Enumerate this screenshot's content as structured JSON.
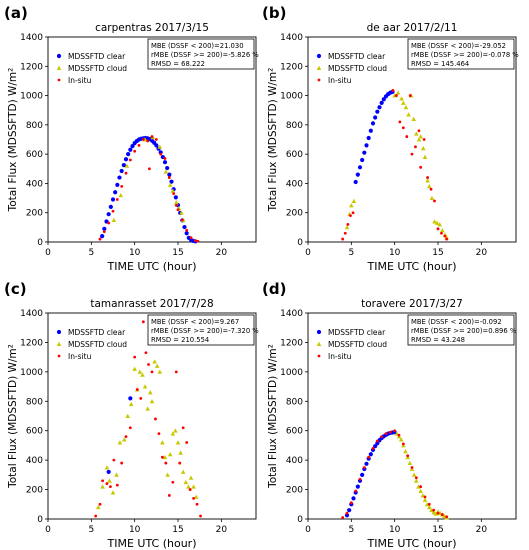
{
  "figure": {
    "panels_order": [
      "a",
      "b",
      "c",
      "d"
    ]
  },
  "chart_data": [
    {
      "panel_label": "(a)",
      "type": "scatter",
      "title": "carpentras  2017/3/15",
      "xlabel": "TIME UTC (hour)",
      "ylabel": "Total Flux (MDSSFTD) W/m²",
      "xlim": [
        0,
        24
      ],
      "ylim": [
        0,
        1400
      ],
      "xticks": [
        0,
        5,
        10,
        15,
        20
      ],
      "yticks": [
        0,
        200,
        400,
        600,
        800,
        1000,
        1200,
        1400
      ],
      "grid": false,
      "legend": "top-left",
      "stats": [
        "MBE (DSSF < 200)=21.030",
        "rMBE (DSSF >= 200)=-5.826 %",
        "RMSD = 68.222"
      ],
      "series": [
        {
          "name": "MDSSFTD clear",
          "color": "#0000ff",
          "x": [
            6.25,
            6.5,
            6.75,
            7,
            7.25,
            7.5,
            7.75,
            8,
            8.25,
            8.5,
            8.75,
            9,
            9.25,
            9.5,
            9.75,
            10,
            10.25,
            10.5,
            10.75,
            11,
            11.25,
            11.5,
            11.75,
            12,
            12.25,
            12.5,
            12.75,
            13,
            13.25,
            13.5,
            13.75,
            14,
            14.25,
            14.5,
            14.75,
            15,
            15.25,
            15.5,
            15.75,
            16,
            16.25,
            16.5,
            16.75,
            17
          ],
          "y": [
            40,
            90,
            140,
            190,
            240,
            290,
            340,
            390,
            440,
            485,
            525,
            565,
            600,
            630,
            655,
            675,
            690,
            700,
            705,
            708,
            710,
            708,
            702,
            692,
            678,
            660,
            638,
            612,
            580,
            545,
            505,
            460,
            412,
            360,
            305,
            252,
            198,
            148,
            102,
            60,
            28,
            15,
            8,
            4
          ]
        },
        {
          "name": "MDSSFTD cloud",
          "color": "#c8c800",
          "x": [
            7.6,
            8.4,
            9.1,
            11.2,
            12.1,
            12.9,
            13.6,
            14.1,
            14.4,
            14.8,
            15.1,
            15.4,
            15.6
          ],
          "y": [
            150,
            320,
            520,
            700,
            715,
            650,
            480,
            390,
            350,
            270,
            230,
            200,
            150
          ],
          "marker": "triangle"
        },
        {
          "name": "In-situ",
          "color": "#ff0000",
          "x": [
            6,
            6.5,
            7,
            7.5,
            8,
            8.5,
            9,
            9.5,
            10,
            10.5,
            11,
            11.5,
            11.7,
            12,
            12.5,
            13,
            13.5,
            14,
            14.5,
            14.8,
            15,
            15.5,
            16,
            16.5,
            17,
            17.3
          ],
          "y": [
            20,
            70,
            130,
            210,
            290,
            380,
            470,
            560,
            620,
            660,
            700,
            690,
            500,
            720,
            700,
            600,
            570,
            440,
            330,
            250,
            220,
            150,
            80,
            30,
            10,
            5
          ]
        }
      ]
    },
    {
      "panel_label": "(b)",
      "type": "scatter",
      "title": "de aar  2017/2/11",
      "xlabel": "TIME UTC (hour)",
      "ylabel": "Total Flux (MDSSFTD) W/m²",
      "xlim": [
        0,
        24
      ],
      "ylim": [
        0,
        1400
      ],
      "xticks": [
        0,
        5,
        10,
        15,
        20
      ],
      "yticks": [
        0,
        200,
        400,
        600,
        800,
        1000,
        1200,
        1400
      ],
      "grid": false,
      "legend": "top-left",
      "stats": [
        "MBE (DSSF < 200)=-29.052",
        "rMBE (DSSF >= 200)=-0.078 %",
        "RMSD = 145.464"
      ],
      "series": [
        {
          "name": "MDSSFTD clear",
          "color": "#0000ff",
          "x": [
            5.5,
            5.75,
            6,
            6.25,
            6.5,
            6.75,
            7,
            7.25,
            7.5,
            7.75,
            8,
            8.25,
            8.5,
            8.75,
            9,
            9.25,
            9.5,
            9.75
          ],
          "y": [
            410,
            460,
            510,
            560,
            610,
            660,
            710,
            760,
            810,
            850,
            890,
            920,
            950,
            975,
            995,
            1010,
            1020,
            1025
          ]
        },
        {
          "name": "MDSSFTD cloud",
          "color": "#c8c800",
          "x": [
            4.5,
            4.8,
            5,
            5.3,
            10,
            10.4,
            10.8,
            11,
            11.3,
            11.6,
            11.9,
            12.2,
            12.5,
            12.8,
            13,
            13.3,
            13.5,
            13.8,
            14,
            14.3,
            14.6,
            14.9,
            15.2,
            15.5,
            15.8,
            16
          ],
          "y": [
            100,
            190,
            250,
            280,
            1000,
            1020,
            980,
            950,
            920,
            870,
            1000,
            840,
            740,
            700,
            720,
            640,
            580,
            420,
            380,
            300,
            140,
            130,
            120,
            80,
            50,
            30
          ],
          "marker": "triangle"
        },
        {
          "name": "In-situ",
          "color": "#ff0000",
          "x": [
            4,
            4.3,
            4.6,
            4.9,
            5.2,
            9.8,
            10.2,
            10.6,
            11,
            11.4,
            11.8,
            12,
            12.4,
            12.8,
            13,
            13.4,
            13.8,
            14.2,
            14.6,
            15,
            15.4,
            15.8,
            16
          ],
          "y": [
            20,
            60,
            120,
            180,
            200,
            1035,
            1000,
            820,
            780,
            720,
            1000,
            600,
            650,
            760,
            510,
            700,
            440,
            360,
            280,
            90,
            60,
            40,
            20
          ]
        }
      ]
    },
    {
      "panel_label": "(c)",
      "type": "scatter",
      "title": "tamanrasset  2017/7/28",
      "xlabel": "TIME UTC (hour)",
      "ylabel": "Total Flux (MDSSFTD) W/m²",
      "xlim": [
        0,
        24
      ],
      "ylim": [
        0,
        1400
      ],
      "xticks": [
        0,
        5,
        10,
        15,
        20
      ],
      "yticks": [
        0,
        200,
        400,
        600,
        800,
        1000,
        1200,
        1400
      ],
      "grid": false,
      "legend": "top-left",
      "stats": [
        "MBE (DSSF < 200)=9.267",
        "rMBE (DSSF >= 200)=-7.320 %",
        "RMSD = 210.554"
      ],
      "series": [
        {
          "name": "MDSSFTD clear",
          "color": "#0000ff",
          "x": [
            7,
            9.5
          ],
          "y": [
            320,
            820
          ]
        },
        {
          "name": "MDSSFTD cloud",
          "color": "#c8c800",
          "x": [
            5.8,
            6.3,
            6.8,
            7.1,
            7.5,
            7.9,
            8.3,
            8.8,
            9.2,
            9.6,
            10,
            10.3,
            10.6,
            10.9,
            11.2,
            11.5,
            11.8,
            12,
            12.3,
            12.6,
            12.9,
            13.2,
            13.5,
            13.8,
            14.1,
            14.4,
            14.7,
            15,
            15.3,
            15.6,
            15.9,
            16.2,
            16.5,
            16.8,
            17.1
          ],
          "y": [
            80,
            220,
            350,
            260,
            180,
            300,
            520,
            540,
            700,
            780,
            1020,
            880,
            1000,
            980,
            900,
            750,
            860,
            800,
            1070,
            1040,
            1000,
            520,
            420,
            300,
            440,
            580,
            600,
            520,
            450,
            320,
            250,
            220,
            280,
            220,
            150
          ],
          "marker": "triangle"
        },
        {
          "name": "In-situ",
          "color": "#ff0000",
          "x": [
            5.5,
            6,
            6.3,
            6.8,
            7.2,
            7.6,
            8,
            8.5,
            9,
            9.5,
            10,
            10.3,
            10.7,
            11,
            11.3,
            11.6,
            12,
            12.4,
            12.8,
            13.2,
            13.6,
            14,
            14.4,
            14.8,
            15.2,
            15.6,
            16,
            16.4,
            16.8,
            17.2,
            17.6
          ],
          "y": [
            20,
            100,
            260,
            240,
            220,
            400,
            230,
            380,
            560,
            620,
            1100,
            880,
            820,
            1340,
            1130,
            1050,
            1000,
            680,
            580,
            420,
            380,
            160,
            250,
            1000,
            380,
            620,
            520,
            200,
            140,
            100,
            20
          ]
        }
      ]
    },
    {
      "panel_label": "(d)",
      "type": "scatter",
      "title": "toravere  2017/3/27",
      "xlabel": "TIME UTC (hour)",
      "ylabel": "Total Flux (MDSSFTD) W/m²",
      "xlim": [
        0,
        24
      ],
      "ylim": [
        0,
        1400
      ],
      "xticks": [
        0,
        5,
        10,
        15,
        20
      ],
      "yticks": [
        0,
        200,
        400,
        600,
        800,
        1000,
        1200,
        1400
      ],
      "grid": false,
      "legend": "top-left",
      "stats": [
        "MBE (DSSF < 200)=-0.092",
        "rMBE (DSSF >= 200)=0.896 %",
        "RMSD = 43.248"
      ],
      "series": [
        {
          "name": "MDSSFTD clear",
          "color": "#0000ff",
          "x": [
            4.5,
            4.75,
            5,
            5.25,
            5.5,
            5.75,
            6,
            6.25,
            6.5,
            6.75,
            7,
            7.25,
            7.5,
            7.75,
            8,
            8.25,
            8.5,
            8.75,
            9,
            9.25,
            9.5,
            9.75,
            10
          ],
          "y": [
            25,
            60,
            100,
            140,
            180,
            220,
            260,
            300,
            340,
            375,
            410,
            440,
            470,
            495,
            515,
            535,
            550,
            562,
            572,
            580,
            585,
            588,
            590
          ]
        },
        {
          "name": "MDSSFTD cloud",
          "color": "#c8c800",
          "x": [
            10.25,
            10.5,
            10.75,
            11,
            11.25,
            11.5,
            11.75,
            12,
            12.25,
            12.5,
            12.75,
            13,
            13.25,
            13.5,
            13.75,
            14,
            14.25,
            14.5,
            14.75,
            15,
            15.25,
            15.5,
            15.75,
            16
          ],
          "y": [
            580,
            560,
            540,
            500,
            460,
            420,
            380,
            340,
            300,
            260,
            220,
            190,
            160,
            130,
            100,
            80,
            60,
            45,
            35,
            50,
            40,
            30,
            20,
            10
          ],
          "marker": "triangle"
        },
        {
          "name": "In-situ",
          "color": "#ff0000",
          "x": [
            4,
            4.5,
            5,
            5.5,
            6,
            6.5,
            7,
            7.5,
            8,
            8.5,
            9,
            9.5,
            10,
            10.5,
            11,
            11.5,
            12,
            12.5,
            13,
            13.5,
            14,
            14.5,
            15,
            15.5,
            16
          ],
          "y": [
            10,
            40,
            110,
            190,
            270,
            350,
            420,
            480,
            530,
            560,
            580,
            590,
            600,
            570,
            510,
            430,
            350,
            280,
            220,
            150,
            100,
            60,
            40,
            30,
            15
          ]
        }
      ]
    }
  ]
}
